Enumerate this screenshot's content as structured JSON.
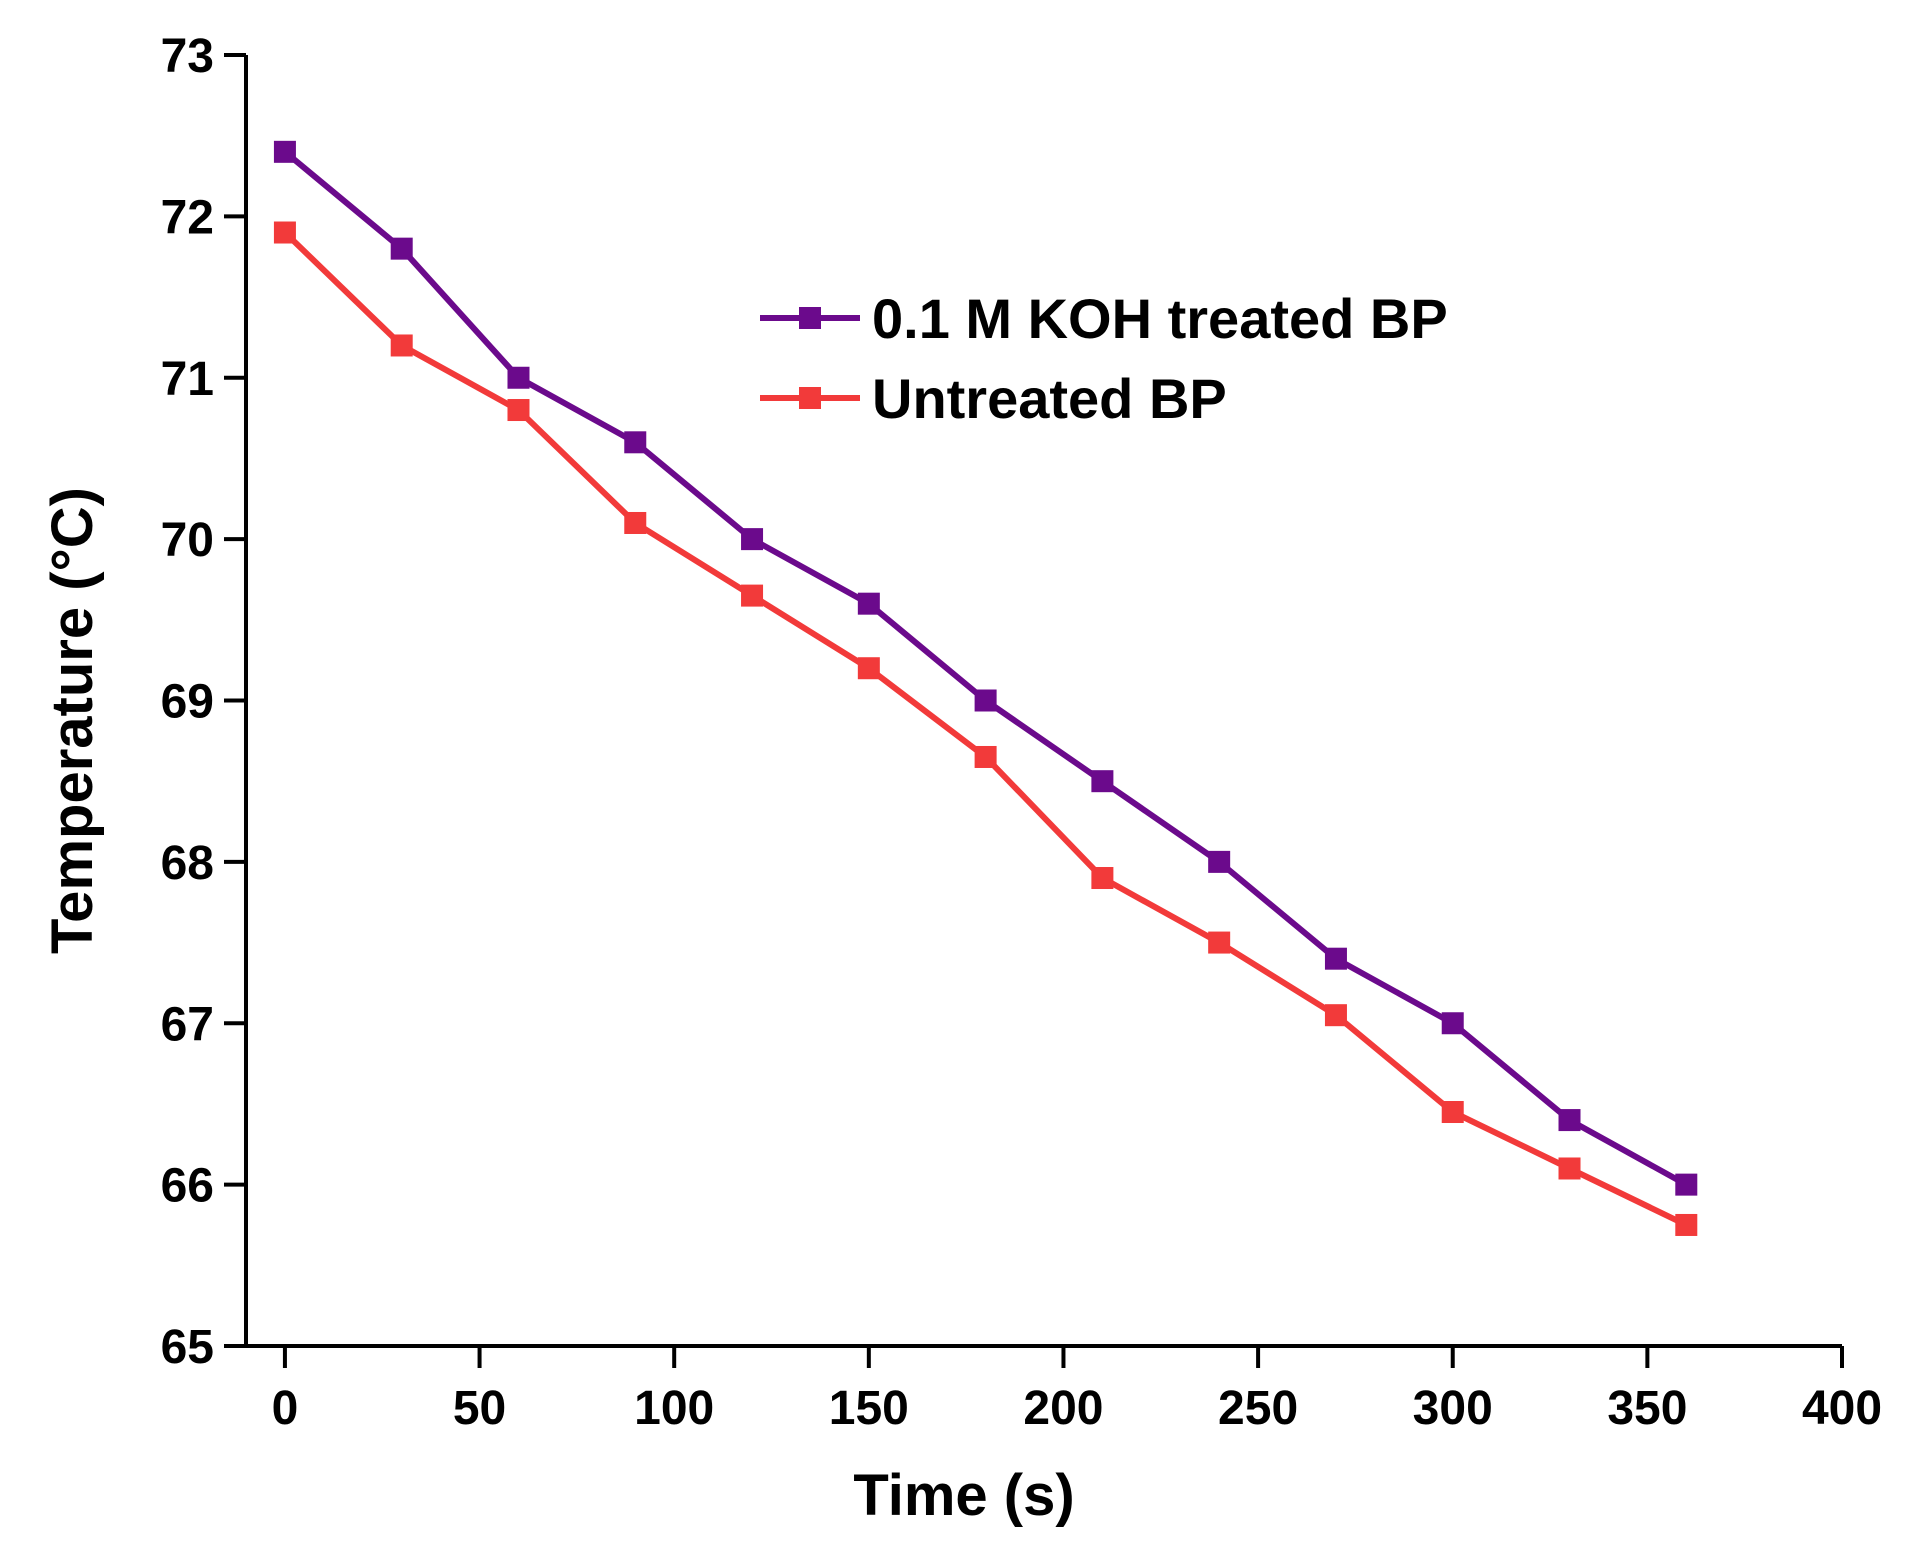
{
  "chart_data": {
    "type": "line",
    "title": "",
    "xlabel": "Time (s)",
    "ylabel": "Temperature (°C)",
    "xlim": [
      -10,
      400
    ],
    "ylim": [
      65,
      73
    ],
    "xticks": [
      0,
      50,
      100,
      150,
      200,
      250,
      300,
      350,
      400
    ],
    "yticks": [
      65,
      66,
      67,
      68,
      69,
      70,
      71,
      72,
      73
    ],
    "grid": false,
    "legend_position": "upper-right inside plot",
    "x": [
      0,
      30,
      60,
      90,
      120,
      150,
      180,
      210,
      240,
      270,
      300,
      330,
      360
    ],
    "series": [
      {
        "name": "0.1 M KOH treated BP",
        "color": "#6B0A8C",
        "marker": "square",
        "values": [
          72.4,
          71.8,
          71.0,
          70.6,
          70.0,
          69.6,
          69.0,
          68.5,
          68.0,
          67.4,
          67.0,
          66.4,
          66.0
        ]
      },
      {
        "name": "Untreated BP",
        "color": "#F23A3A",
        "marker": "square",
        "values": [
          71.9,
          71.2,
          70.8,
          70.1,
          69.65,
          69.2,
          68.65,
          67.9,
          67.5,
          67.05,
          66.45,
          66.1,
          65.75
        ]
      }
    ]
  }
}
